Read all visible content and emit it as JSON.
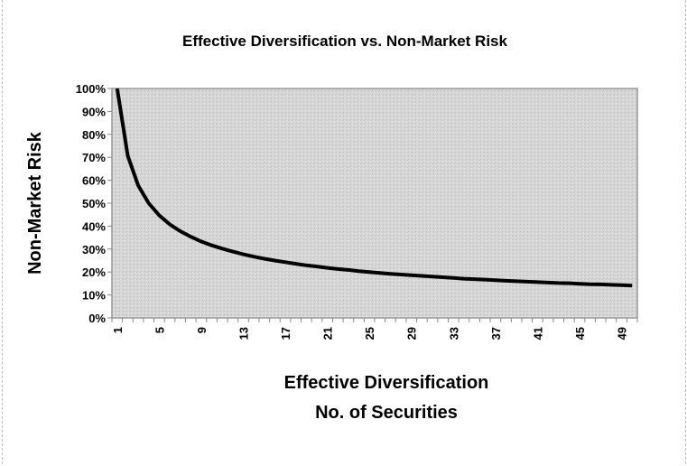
{
  "chart_data": {
    "type": "line",
    "title": "Effective Diversification vs. Non-Market Risk",
    "xlabel": [
      "Effective Diversification",
      "No. of Securities"
    ],
    "ylabel": "Non-Market Risk",
    "ylim": [
      0,
      100
    ],
    "y_ticks": [
      "0%",
      "10%",
      "20%",
      "30%",
      "40%",
      "50%",
      "60%",
      "70%",
      "80%",
      "90%",
      "100%"
    ],
    "x_tick_labels": [
      "1",
      "5",
      "9",
      "13",
      "17",
      "21",
      "25",
      "29",
      "33",
      "37",
      "41",
      "45",
      "49"
    ],
    "grid": false,
    "legend": "none",
    "x": [
      1,
      2,
      3,
      4,
      5,
      6,
      7,
      8,
      9,
      10,
      11,
      12,
      13,
      14,
      15,
      16,
      17,
      18,
      19,
      20,
      21,
      22,
      23,
      24,
      25,
      26,
      27,
      28,
      29,
      30,
      31,
      32,
      33,
      34,
      35,
      36,
      37,
      38,
      39,
      40,
      41,
      42,
      43,
      44,
      45,
      46,
      47,
      48,
      49,
      50
    ],
    "series": [
      {
        "name": "Non-Market Risk",
        "values": [
          100,
          70.7,
          57.7,
          50,
          44.7,
          40.8,
          37.8,
          35.4,
          33.3,
          31.6,
          30.2,
          28.9,
          27.7,
          26.7,
          25.8,
          25,
          24.3,
          23.6,
          22.9,
          22.4,
          21.8,
          21.3,
          20.9,
          20.4,
          20,
          19.6,
          19.2,
          18.9,
          18.6,
          18.3,
          18,
          17.7,
          17.4,
          17.1,
          16.9,
          16.7,
          16.4,
          16.2,
          16,
          15.8,
          15.6,
          15.4,
          15.2,
          15.1,
          14.9,
          14.7,
          14.6,
          14.4,
          14.3,
          14.1
        ]
      }
    ],
    "colors": {
      "plot_bg": "#d3d3d3",
      "line": "#000000"
    }
  }
}
